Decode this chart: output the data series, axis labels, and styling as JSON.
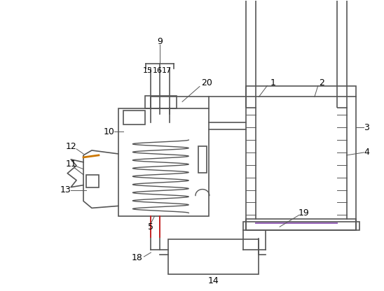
{
  "bg_color": "#ffffff",
  "line_color": "#555555",
  "purple_color": "#9966bb",
  "red_color": "#cc2222",
  "orange_color": "#cc7700",
  "label_color": "#000000",
  "fig_width": 5.48,
  "fig_height": 4.16,
  "dpi": 100
}
